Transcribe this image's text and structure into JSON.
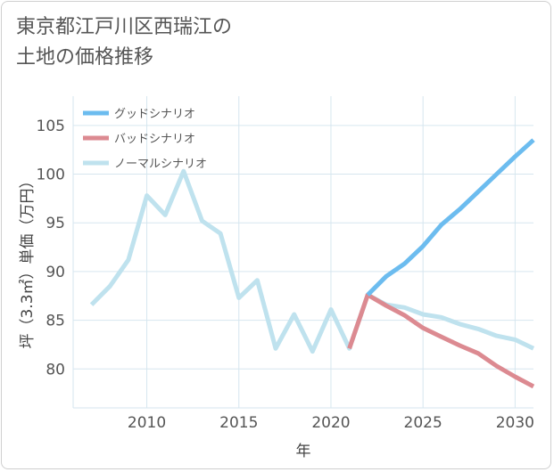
{
  "title_lines": [
    "東京都江戸川区西瑞江の",
    "土地の価格推移"
  ],
  "chart_data": {
    "type": "line",
    "title": "東京都江戸川区西瑞江の土地の価格推移",
    "xlabel": "年",
    "ylabel": "坪（3.3㎡）単価（万円）",
    "xlim": [
      2006,
      2031
    ],
    "ylim": [
      76,
      108
    ],
    "xticks": [
      2010,
      2015,
      2020,
      2025,
      2030
    ],
    "yticks": [
      80,
      85,
      90,
      95,
      100,
      105
    ],
    "grid": true,
    "legend_position": "top-left",
    "series": [
      {
        "name": "グッドシナリオ",
        "color": "#6cbcef",
        "x": [
          2022,
          2023,
          2024,
          2025,
          2026,
          2027,
          2028,
          2029,
          2030,
          2031
        ],
        "y": [
          87.6,
          89.5,
          90.8,
          92.6,
          94.8,
          96.4,
          98.2,
          100.0,
          101.8,
          103.5
        ]
      },
      {
        "name": "バッドシナリオ",
        "color": "#dc8a91",
        "x": [
          2021,
          2022,
          2023,
          2024,
          2025,
          2026,
          2027,
          2028,
          2029,
          2030,
          2031
        ],
        "y": [
          82.1,
          87.6,
          86.5,
          85.5,
          84.2,
          83.3,
          82.4,
          81.6,
          80.3,
          79.2,
          78.2
        ]
      },
      {
        "name": "ノーマルシナリオ",
        "color": "#bfe2ee",
        "x": [
          2007,
          2008,
          2009,
          2010,
          2011,
          2012,
          2013,
          2014,
          2015,
          2016,
          2017,
          2018,
          2019,
          2020,
          2021,
          2022,
          2023,
          2024,
          2025,
          2026,
          2027,
          2028,
          2029,
          2030,
          2031
        ],
        "y": [
          86.6,
          88.5,
          91.2,
          97.8,
          95.8,
          100.3,
          95.2,
          93.9,
          87.3,
          89.1,
          82.1,
          85.6,
          81.8,
          86.1,
          82.1,
          87.6,
          86.6,
          86.3,
          85.6,
          85.3,
          84.6,
          84.1,
          83.4,
          83.0,
          82.1
        ]
      }
    ]
  }
}
